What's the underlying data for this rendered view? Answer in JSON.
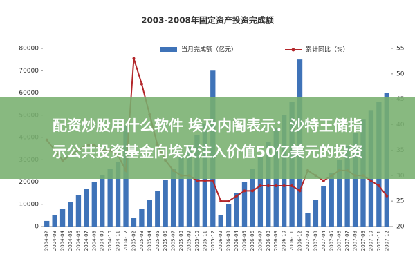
{
  "chart_data": {
    "type": "bar",
    "title": "2003-2008年固定资产投资完成额",
    "categories": [
      "2004-02",
      "2004-03",
      "2004-04",
      "2004-05",
      "2004-06",
      "2004-07",
      "2004-08",
      "2004-09",
      "2004-10",
      "2004-11",
      "2004-12",
      "2005-02",
      "2005-03",
      "2005-04",
      "2005-05",
      "2005-06",
      "2005-07",
      "2005-08",
      "2005-09",
      "2005-10",
      "2005-11",
      "2005-12",
      "2006-02",
      "2006-03",
      "2006-04",
      "2006-05",
      "2006-06",
      "2006-07",
      "2006-08",
      "2006-09",
      "2006-10",
      "2006-11",
      "2006-12",
      "2007-02",
      "2007-03",
      "2007-04",
      "2007-05",
      "2007-06",
      "2007-07",
      "2007-08",
      "2007-09",
      "2007-10",
      "2007-11",
      "2007-12"
    ],
    "series": [
      {
        "name": "当月完成额（亿元）",
        "type": "bar",
        "color": "#3f73b8",
        "values": [
          2500,
          5000,
          8000,
          11000,
          14000,
          17000,
          20000,
          23000,
          26000,
          29000,
          45000,
          4000,
          8000,
          12000,
          16000,
          21000,
          26000,
          31000,
          36000,
          41000,
          46000,
          70000,
          5000,
          10000,
          15000,
          20000,
          26000,
          32000,
          38000,
          44000,
          50000,
          56000,
          75000,
          6000,
          12000,
          18000,
          24000,
          30000,
          36000,
          42000,
          48000,
          52000,
          56000,
          60000
        ]
      },
      {
        "name": "累计同比（%）",
        "type": "line",
        "axis": "y2",
        "color": "#b3262a",
        "values": [
          37,
          35,
          33,
          34,
          35,
          36,
          36,
          35,
          35,
          34,
          31,
          53,
          48,
          42,
          36,
          33,
          31,
          30,
          30,
          29,
          29,
          29,
          25,
          25,
          26,
          27,
          27,
          28,
          28,
          28,
          28,
          28,
          27,
          31,
          30,
          29,
          30,
          31,
          31,
          30,
          30,
          29,
          28,
          26
        ]
      }
    ],
    "ylim": [
      0,
      80000
    ],
    "yticks": [
      0,
      10000,
      20000,
      30000,
      40000,
      50000,
      60000,
      70000,
      80000
    ],
    "y2lim": [
      20,
      55
    ],
    "y2ticks": [
      20,
      25,
      30,
      35,
      40,
      45,
      50,
      55
    ]
  },
  "overlay": {
    "lines": [
      "配资炒股用什么软件 埃及内阁表示：沙特王储指",
      "示公共投资基金向埃及注入价值50亿美元的投资"
    ]
  }
}
